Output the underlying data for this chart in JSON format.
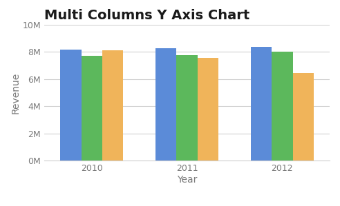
{
  "title": "Multi Columns Y Axis Chart",
  "xlabel": "Year",
  "ylabel": "Revenue",
  "categories": [
    "2010",
    "2011",
    "2012"
  ],
  "series": {
    "Actual": [
      8150000,
      8250000,
      8350000
    ],
    "Budgeted": [
      7700000,
      7750000,
      8000000
    ],
    "Forecast": [
      8100000,
      7550000,
      6450000
    ]
  },
  "colors": {
    "Actual": "#5b8bd8",
    "Budgeted": "#5cb85c",
    "Forecast": "#f0b45a"
  },
  "ylim": [
    0,
    10000000
  ],
  "yticks": [
    0,
    2000000,
    4000000,
    6000000,
    8000000,
    10000000
  ],
  "ytick_labels": [
    "0M",
    "2M",
    "4M",
    "6M",
    "8M",
    "10M"
  ],
  "background_color": "#ffffff",
  "grid_color": "#d0d0d0",
  "title_fontsize": 14,
  "axis_label_fontsize": 10,
  "tick_fontsize": 9,
  "legend_fontsize": 9,
  "bar_width": 0.22,
  "title_color": "#1a1a1a",
  "axis_label_color": "#7a7a7a",
  "tick_color": "#7a7a7a"
}
